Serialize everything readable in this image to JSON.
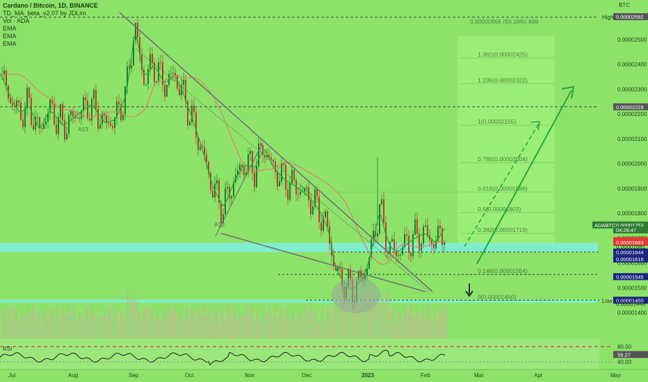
{
  "legend": {
    "title": "Cardano / Bitcoin, 1D, BINANCE",
    "line2": "TD_MA_beta_v2.07 by JDLim",
    "line3": "Vol · ADA",
    "line4": "EMA",
    "line5": "EMA",
    "line6": "EMA"
  },
  "currency": "BTC",
  "measure_label": "0.00000866 (50.16%) 866",
  "rsi_label": "RSI",
  "chart_data": {
    "type": "candlestick",
    "title": "Cardano / Bitcoin, 1D, BINANCE",
    "x_ticks": [
      "Jul",
      "Aug",
      "Sep",
      "Oct",
      "Nov",
      "Dec",
      "2023",
      "Feb",
      "Mar",
      "Apr",
      "May"
    ],
    "y_ticks": [
      "0.00002500",
      "0.00002400",
      "0.00002300",
      "0.00002200",
      "0.00002100",
      "0.00002000",
      "0.00001900",
      "0.00001800",
      "0.00001700",
      "0.00001600",
      "0.00001500",
      "0.00001400"
    ],
    "y_range": [
      1.35e-05,
      2.62e-05
    ],
    "price_path": [
      [
        0,
        2.36e-05
      ],
      [
        14,
        2.26e-05
      ],
      [
        28,
        2.2e-05
      ],
      [
        40,
        2.24e-05
      ],
      [
        55,
        2.13e-05
      ],
      [
        70,
        2.22e-05
      ],
      [
        90,
        2.15e-05
      ],
      [
        110,
        2.2e-05
      ],
      [
        130,
        2.24e-05
      ],
      [
        150,
        2.16e-05
      ],
      [
        165,
        2.18e-05
      ],
      [
        180,
        2.28e-05
      ],
      [
        193,
        2.56e-05
      ],
      [
        205,
        2.34e-05
      ],
      [
        220,
        2.4e-05
      ],
      [
        235,
        2.32e-05
      ],
      [
        250,
        2.36e-05
      ],
      [
        262,
        2.28e-05
      ],
      [
        275,
        2.18e-05
      ],
      [
        290,
        2.05e-05
      ],
      [
        305,
        1.9e-05
      ],
      [
        320,
        1.82e-05
      ],
      [
        335,
        1.93e-05
      ],
      [
        350,
        2e-05
      ],
      [
        365,
        1.98e-05
      ],
      [
        378,
        2.07e-05
      ],
      [
        392,
        1.98e-05
      ],
      [
        410,
        1.93e-05
      ],
      [
        428,
        1.9e-05
      ],
      [
        445,
        1.86e-05
      ],
      [
        460,
        1.8e-05
      ],
      [
        472,
        1.72e-05
      ],
      [
        480,
        1.58e-05
      ],
      [
        490,
        1.53e-05
      ],
      [
        505,
        1.49e-05
      ],
      [
        515,
        1.52e-05
      ],
      [
        525,
        1.57e-05
      ],
      [
        535,
        1.68e-05
      ],
      [
        545,
        1.83e-05
      ],
      [
        552,
        1.72e-05
      ],
      [
        560,
        1.66e-05
      ],
      [
        570,
        1.64e-05
      ],
      [
        580,
        1.67e-05
      ],
      [
        595,
        1.7e-05
      ],
      [
        610,
        1.72e-05
      ],
      [
        625,
        1.68e-05
      ],
      [
        640,
        1.75e-05
      ]
    ],
    "pivot_marker": {
      "label": "A13",
      "price": 2.13e-05
    },
    "pivot_marker2": {
      "label": "A13",
      "price": 1.82e-05
    },
    "price_axis_tags": [
      {
        "label": "0.00002592",
        "price": 2.592e-05,
        "color": "#555555"
      },
      {
        "label": "0.00002229",
        "price": 2.229e-05,
        "color": "#555555"
      },
      {
        "label": "0.00001753",
        "price": 1.753e-05,
        "color": "#2e7d32"
      },
      {
        "label": "04:28:47",
        "price": 1.733e-05,
        "color": "#2e7d32"
      },
      {
        "label": "0.00001690",
        "price": 1.69e-05,
        "color": "#e53935"
      },
      {
        "label": "0.00001683",
        "price": 1.683e-05,
        "color": "#e53935"
      },
      {
        "label": "0.00001681",
        "price": 1.666e-05,
        "color": "none"
      },
      {
        "label": "0.00001644",
        "price": 1.644e-05,
        "color": "#1a237e"
      },
      {
        "label": "0.00001616",
        "price": 1.616e-05,
        "color": "#1a237e"
      },
      {
        "label": "0.00001545",
        "price": 1.545e-05,
        "color": "#1a237e"
      },
      {
        "label": "0.00001450",
        "price": 1.45e-05,
        "color": "#1a237e"
      },
      {
        "label": "0.00001448",
        "price": 1.436e-05,
        "color": "none"
      }
    ],
    "side_labels": [
      {
        "label": "High",
        "price": 2.59e-05
      },
      {
        "label": "ADABTC",
        "price": 1.753e-05
      },
      {
        "label": "Low",
        "price": 1.448e-05
      }
    ],
    "fib_levels": [
      {
        "label": "1.382(0.00002425)",
        "price": 2.425e-05
      },
      {
        "label": "1.236(0.00002322)",
        "price": 2.322e-05
      },
      {
        "label": "1(0.00002155)",
        "price": 2.155e-05
      },
      {
        "label": "0.786(0.00002004)",
        "price": 2.004e-05
      },
      {
        "label": "0.618(0.00001886)",
        "price": 1.886e-05
      },
      {
        "label": "0.5(0.00001803)",
        "price": 1.803e-05
      },
      {
        "label": "0.382(0.00001719)",
        "price": 1.719e-05
      },
      {
        "label": "0.148(0.00001554)",
        "price": 1.554e-05
      },
      {
        "label": "0(0.00001450)",
        "price": 1.45e-05
      }
    ],
    "horizontal_levels": [
      2.59e-05,
      2.229e-05
    ],
    "support_zones": [
      {
        "low": 1.644e-05,
        "high": 1.681e-05
      },
      {
        "low": 1.44e-05,
        "high": 1.452e-05
      }
    ],
    "rsi": {
      "ticks": [
        "80.00",
        "40.00"
      ],
      "current": "59.27"
    }
  }
}
